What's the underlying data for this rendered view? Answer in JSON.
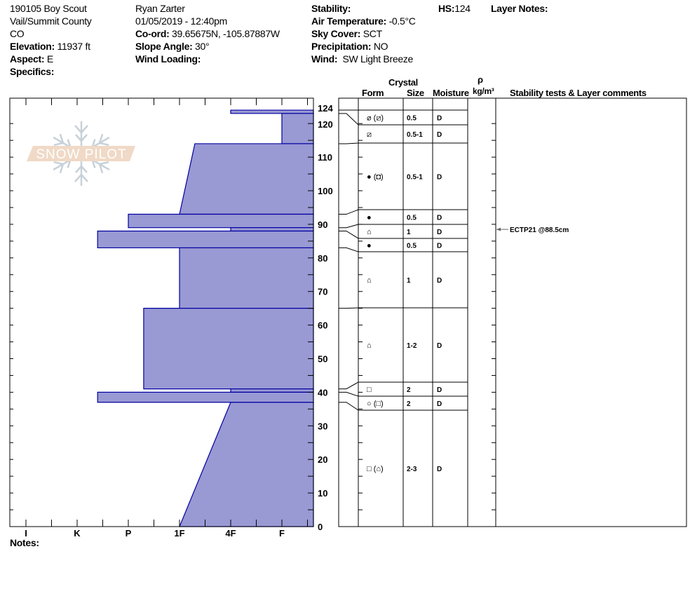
{
  "header": {
    "col1": [
      "190105 Boy Scout",
      "Vail/Summit County",
      "CO"
    ],
    "elevation_label": "Elevation:",
    "elevation": "11937 ft",
    "aspect_label": "Aspect:",
    "aspect": "E",
    "specifics_label": "Specifics:",
    "observer": "Ryan Zarter",
    "datetime": "01/05/2019 - 12:40pm",
    "coord_label": "Co-ord:",
    "coord": "39.65675N, -105.87887W",
    "slope_label": "Slope Angle:",
    "slope": "30°",
    "wind_loading_label": "Wind Loading:",
    "stability_label": "Stability:",
    "air_temp_label": "Air Temperature:",
    "air_temp": "-0.5°C",
    "sky_label": "Sky Cover:",
    "sky": "SCT",
    "precip_label": "Precipitation:",
    "precip": "NO",
    "wind_label": "Wind:",
    "wind": "SW Light Breeze",
    "hs_label": "HS:",
    "hs": "124",
    "layer_notes_label": "Layer Notes:"
  },
  "table_headers": {
    "crystal": "Crystal",
    "form": "Form",
    "size": "Size",
    "moisture": "Moisture",
    "rho": "ρ",
    "density_unit": "kg/m³",
    "comments": "Stability tests & Layer comments"
  },
  "notes_label": "Notes:",
  "logo_text": "SNOW PILOT",
  "colors": {
    "fill": "#9999d4",
    "stroke": "#0000a0",
    "logo": "#f0d8c4",
    "flake": "#c5cfd8"
  },
  "stability_tests": [
    {
      "text": "ECTP21 @88.5cm",
      "depth": 88.5
    }
  ],
  "chart_data": {
    "type": "area",
    "ylabel": "",
    "xlabel": "",
    "ylim": [
      0,
      124
    ],
    "yticks": [
      0,
      10,
      20,
      30,
      40,
      50,
      60,
      70,
      80,
      90,
      100,
      110,
      120,
      124
    ],
    "hardness_ticks": [
      "I",
      "K",
      "P",
      "1F",
      "4F",
      "F"
    ],
    "layers": [
      {
        "top": 124,
        "bottom": 123,
        "hardness_top": 5,
        "hardness_bottom": 5,
        "form": "⌀ (⧄)",
        "size": "0.5",
        "moisture": "D"
      },
      {
        "top": 123,
        "bottom": 114,
        "hardness_top": 6,
        "hardness_bottom": 6,
        "form": "⧄",
        "size": "0.5-1",
        "moisture": "D"
      },
      {
        "top": 114,
        "bottom": 93,
        "hardness_top": 4.3,
        "hardness_bottom": 4,
        "form": "● (◘)",
        "size": "0.5-1",
        "moisture": "D"
      },
      {
        "top": 93,
        "bottom": 89,
        "hardness_top": 3,
        "hardness_bottom": 3,
        "form": "●",
        "size": "0.5",
        "moisture": "D"
      },
      {
        "top": 89,
        "bottom": 88,
        "hardness_top": 5,
        "hardness_bottom": 5,
        "form": "⌂",
        "size": "1",
        "moisture": "D"
      },
      {
        "top": 88,
        "bottom": 83,
        "hardness_top": 2.4,
        "hardness_bottom": 2.4,
        "form": "●",
        "size": "0.5",
        "moisture": "D"
      },
      {
        "top": 83,
        "bottom": 65,
        "hardness_top": 4,
        "hardness_bottom": 4,
        "form": "⌂",
        "size": "1",
        "moisture": "D"
      },
      {
        "top": 65,
        "bottom": 41,
        "hardness_top": 3.3,
        "hardness_bottom": 3.3,
        "form": "⌂",
        "size": "1-2",
        "moisture": "D"
      },
      {
        "top": 41,
        "bottom": 40,
        "hardness_top": 5,
        "hardness_bottom": 5,
        "form": "□",
        "size": "2",
        "moisture": "D"
      },
      {
        "top": 40,
        "bottom": 37,
        "hardness_top": 2.4,
        "hardness_bottom": 2.4,
        "form": "○ (□)",
        "size": "2",
        "moisture": "D"
      },
      {
        "top": 37,
        "bottom": 0,
        "hardness_top": 5,
        "hardness_bottom": 4,
        "form": "□ (⌂)",
        "size": "2-3",
        "moisture": "D"
      }
    ]
  }
}
